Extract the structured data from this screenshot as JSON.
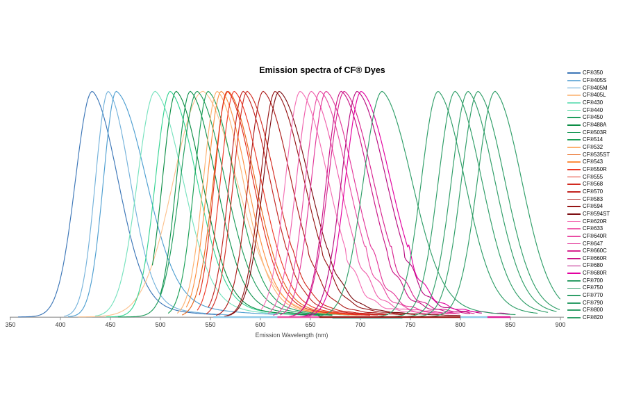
{
  "figure": {
    "title": "Emission spectra of CF® Dyes",
    "xlabel": "Emission Wavelength (nm)"
  },
  "style": {
    "background": "#FFFFFF",
    "axis_color": "#8C8C8C",
    "tick_label_color": "#333333",
    "axis_label_color": "#454545",
    "title_color": "#000000",
    "nir_green": "#2F9E68"
  },
  "chart_data": {
    "type": "line",
    "title": "Emission spectra of CF® Dyes",
    "xlabel": "Emission Wavelength (nm)",
    "ylabel": "",
    "x_axis": {
      "min": 350,
      "max": 900,
      "unit": "nm",
      "ticks": [
        350,
        400,
        450,
        500,
        550,
        600,
        650,
        700,
        750,
        800,
        850,
        900
      ]
    },
    "y_axis": {
      "visible": false,
      "normalized_peak_height": 1.0,
      "range": [
        0,
        1
      ]
    },
    "grid": false,
    "legend_position": "right",
    "series": [
      {
        "name": "CF®350",
        "color": "#3C76B7",
        "peak_nm": 432,
        "width_left_nm": 17,
        "width_right_nm": 26,
        "tail_nm": 45,
        "range_nm": [
          358,
          560
        ],
        "noise": 0
      },
      {
        "name": "CF®405S",
        "color": "#74B2DB",
        "peak_nm": 448,
        "width_left_nm": 13,
        "width_right_nm": 22,
        "tail_nm": 42,
        "range_nm": [
          404,
          572
        ],
        "noise": 0
      },
      {
        "name": "CF®405M",
        "color": "#4F9FD1",
        "peak_nm": 456,
        "width_left_nm": 13,
        "width_right_nm": 30,
        "tail_nm": 60,
        "range_nm": [
          408,
          617
        ],
        "noise": 0
      },
      {
        "name": "CF®405L",
        "color": "#FCC28E",
        "peak_nm": 543,
        "width_left_nm": 30,
        "width_right_nm": 34,
        "tail_nm": 55,
        "range_nm": [
          418,
          700
        ],
        "noise": 0
      },
      {
        "name": "CF®430",
        "color": "#77E2BE",
        "peak_nm": 495,
        "width_left_nm": 18,
        "width_right_nm": 28,
        "tail_nm": 50,
        "range_nm": [
          435,
          648
        ],
        "noise": 0
      },
      {
        "name": "CF®440",
        "color": "#36D493",
        "peak_nm": 510,
        "width_left_nm": 15,
        "width_right_nm": 27,
        "tail_nm": 48,
        "range_nm": [
          446,
          660
        ],
        "noise": 0
      },
      {
        "name": "CF®450",
        "color": "#1F9C5C",
        "peak_nm": 537,
        "width_left_nm": 17,
        "width_right_nm": 28,
        "tail_nm": 48,
        "range_nm": [
          458,
          672
        ],
        "noise": 0
      },
      {
        "name": "CF®488A",
        "color": "#0D8E46",
        "peak_nm": 516,
        "width_left_nm": 14,
        "width_right_nm": 26,
        "tail_nm": 46,
        "range_nm": [
          492,
          660
        ],
        "noise": 0
      },
      {
        "name": "CF®503R",
        "color": "#129450",
        "peak_nm": 530,
        "width_left_nm": 14,
        "width_right_nm": 26,
        "tail_nm": 46,
        "range_nm": [
          500,
          672
        ],
        "noise": 0
      },
      {
        "name": "CF®514",
        "color": "#1A9F56",
        "peak_nm": 548,
        "width_left_nm": 14,
        "width_right_nm": 27,
        "tail_nm": 48,
        "range_nm": [
          508,
          690
        ],
        "noise": 0
      },
      {
        "name": "CF®532",
        "color": "#FDB170",
        "peak_nm": 557,
        "width_left_nm": 14,
        "width_right_nm": 26,
        "tail_nm": 46,
        "range_nm": [
          517,
          698
        ],
        "noise": 0
      },
      {
        "name": "CF®535ST",
        "color": "#E8681C",
        "peak_nm": 568,
        "width_left_nm": 15,
        "width_right_nm": 27,
        "tail_nm": 48,
        "range_nm": [
          522,
          710
        ],
        "noise": 0
      },
      {
        "name": "CF®543",
        "color": "#FD8F40",
        "peak_nm": 561,
        "width_left_nm": 14,
        "width_right_nm": 26,
        "tail_nm": 46,
        "range_nm": [
          526,
          700
        ],
        "noise": 0
      },
      {
        "name": "CF®550R",
        "color": "#EE3A28",
        "peak_nm": 574,
        "width_left_nm": 14,
        "width_right_nm": 27,
        "tail_nm": 48,
        "range_nm": [
          537,
          718
        ],
        "noise": 0
      },
      {
        "name": "CF®555",
        "color": "#E2301F",
        "peak_nm": 567,
        "width_left_nm": 13,
        "width_right_nm": 26,
        "tail_nm": 46,
        "range_nm": [
          539,
          710
        ],
        "noise": 0
      },
      {
        "name": "CF®568",
        "color": "#D22B20",
        "peak_nm": 587,
        "width_left_nm": 14,
        "width_right_nm": 28,
        "tail_nm": 50,
        "range_nm": [
          546,
          728
        ],
        "noise": 0.03
      },
      {
        "name": "CF®570",
        "color": "#C22420",
        "peak_nm": 583,
        "width_left_nm": 14,
        "width_right_nm": 27,
        "tail_nm": 48,
        "range_nm": [
          548,
          724
        ],
        "noise": 0.03
      },
      {
        "name": "CF®583",
        "color": "#AC1C1A",
        "peak_nm": 603,
        "width_left_nm": 15,
        "width_right_nm": 28,
        "tail_nm": 50,
        "range_nm": [
          556,
          744
        ],
        "noise": 0.05
      },
      {
        "name": "CF®594",
        "color": "#951414",
        "peak_nm": 615,
        "width_left_nm": 15,
        "width_right_nm": 29,
        "tail_nm": 52,
        "range_nm": [
          564,
          756
        ],
        "noise": 0.05
      },
      {
        "name": "CF®594ST",
        "color": "#7D0E12",
        "peak_nm": 619,
        "width_left_nm": 16,
        "width_right_nm": 30,
        "tail_nm": 55,
        "range_nm": [
          567,
          800
        ],
        "noise": 0.05
      },
      {
        "name": "CF®620R",
        "color": "#F470B5",
        "peak_nm": 640,
        "width_left_nm": 15,
        "width_right_nm": 28,
        "tail_nm": 55,
        "range_nm": [
          601,
          778
        ],
        "noise": 0.1
      },
      {
        "name": "CF®633",
        "color": "#EF5FAC",
        "peak_nm": 651,
        "width_left_nm": 15,
        "width_right_nm": 28,
        "tail_nm": 55,
        "range_nm": [
          608,
          788
        ],
        "noise": 0.1
      },
      {
        "name": "CF®640R",
        "color": "#E94CA3",
        "peak_nm": 660,
        "width_left_nm": 15,
        "width_right_nm": 28,
        "tail_nm": 55,
        "range_nm": [
          613,
          796
        ],
        "noise": 0.1
      },
      {
        "name": "CF®647",
        "color": "#E23799",
        "peak_nm": 666,
        "width_left_nm": 15,
        "width_right_nm": 28,
        "tail_nm": 55,
        "range_nm": [
          620,
          800
        ],
        "noise": 0.1
      },
      {
        "name": "CF®660C",
        "color": "#D7238F",
        "peak_nm": 684,
        "width_left_nm": 16,
        "width_right_nm": 29,
        "tail_nm": 58,
        "range_nm": [
          629,
          814
        ],
        "noise": 0.1
      },
      {
        "name": "CF®660R",
        "color": "#CA1487",
        "peak_nm": 681,
        "width_left_nm": 15,
        "width_right_nm": 28,
        "tail_nm": 56,
        "range_nm": [
          633,
          810
        ],
        "noise": 0.1
      },
      {
        "name": "CF®680",
        "color": "#B80C81",
        "peak_nm": 697,
        "width_left_nm": 16,
        "width_right_nm": 29,
        "tail_nm": 58,
        "range_nm": [
          640,
          822
        ],
        "noise": 0.1
      },
      {
        "name": "CF®680R",
        "color": "#E300A0",
        "peak_nm": 701,
        "width_left_nm": 16,
        "width_right_nm": 29,
        "tail_nm": 60,
        "range_nm": [
          644,
          850
        ],
        "noise": 0.1
      },
      {
        "name": "CF®700",
        "color": "#2F9E68",
        "peak_nm": 722,
        "width_left_nm": 19,
        "width_right_nm": 30,
        "tail_nm": 48,
        "range_nm": [
          658,
          856
        ],
        "noise": 0
      },
      {
        "name": "CF®750",
        "color": "#2F9E68",
        "peak_nm": 778,
        "width_left_nm": 17,
        "width_right_nm": 27,
        "tail_nm": 42,
        "range_nm": [
          704,
          878
        ],
        "noise": 0
      },
      {
        "name": "CF®770",
        "color": "#2F9E68",
        "peak_nm": 795,
        "width_left_nm": 17,
        "width_right_nm": 27,
        "tail_nm": 42,
        "range_nm": [
          718,
          888
        ],
        "noise": 0
      },
      {
        "name": "CF®790",
        "color": "#2F9E68",
        "peak_nm": 808,
        "width_left_nm": 17,
        "width_right_nm": 27,
        "tail_nm": 42,
        "range_nm": [
          729,
          896
        ],
        "noise": 0
      },
      {
        "name": "CF®800",
        "color": "#2F9E68",
        "peak_nm": 818,
        "width_left_nm": 17,
        "width_right_nm": 27,
        "tail_nm": 42,
        "range_nm": [
          737,
          900
        ],
        "noise": 0
      },
      {
        "name": "CF®820",
        "color": "#2F9E68",
        "peak_nm": 835,
        "width_left_nm": 18,
        "width_right_nm": 27,
        "tail_nm": 40,
        "range_nm": [
          752,
          900
        ],
        "noise": 0
      }
    ],
    "baseline_bands": [
      {
        "from_nm": 672,
        "to_nm": 742,
        "color": "#7AD2C5",
        "sub": true
      },
      {
        "from_nm": 553,
        "to_nm": 617,
        "color": "#8FC8E8"
      },
      {
        "from_nm": 617,
        "to_nm": 659,
        "color": "#E94FA6"
      },
      {
        "from_nm": 659,
        "to_nm": 800,
        "color": "#9A1414"
      },
      {
        "from_nm": 800,
        "to_nm": 827,
        "color": "#8FC8E8"
      },
      {
        "from_nm": 827,
        "to_nm": 850,
        "color": "#DD1C97"
      }
    ]
  }
}
